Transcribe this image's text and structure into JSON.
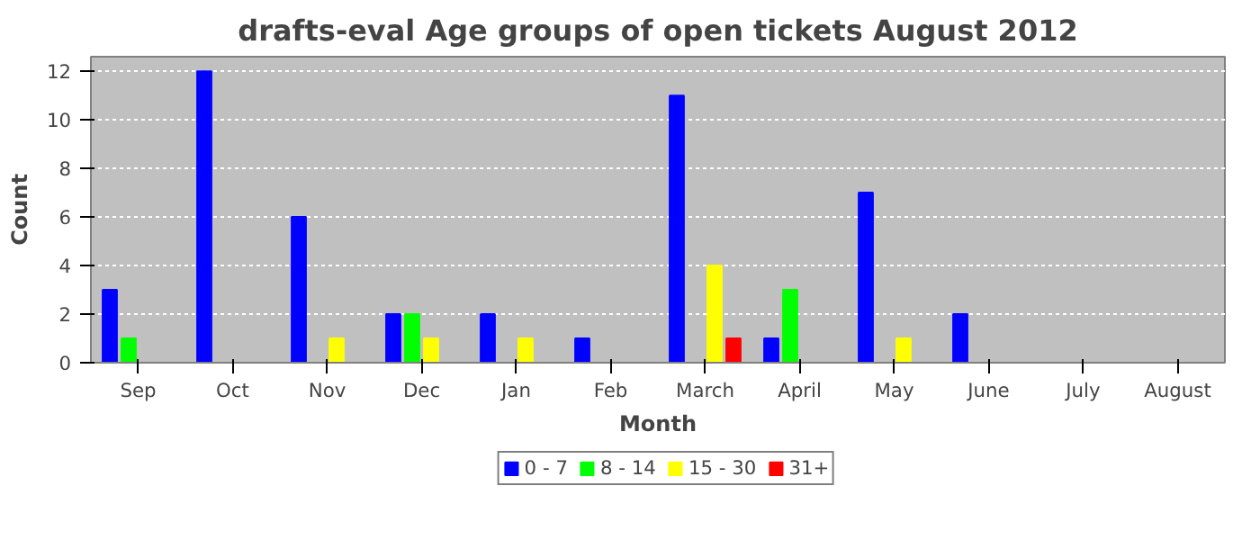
{
  "chart_data": {
    "type": "bar",
    "title": "drafts-eval Age groups of open tickets August 2012",
    "xlabel": "Month",
    "ylabel": "Count",
    "categories": [
      "Sep",
      "Oct",
      "Nov",
      "Dec",
      "Jan",
      "Feb",
      "March",
      "April",
      "May",
      "June",
      "July",
      "August"
    ],
    "series": [
      {
        "name": "0 - 7",
        "color": "#0000ff",
        "values": [
          3,
          12,
          6,
          2,
          2,
          1,
          11,
          1,
          7,
          2,
          0,
          0
        ]
      },
      {
        "name": "8 - 14",
        "color": "#00ff00",
        "values": [
          1,
          0,
          0,
          2,
          0,
          0,
          0,
          3,
          0,
          0,
          0,
          0
        ]
      },
      {
        "name": "15 - 30",
        "color": "#ffff00",
        "values": [
          0,
          0,
          1,
          1,
          1,
          0,
          4,
          0,
          1,
          0,
          0,
          0
        ]
      },
      {
        "name": "31+",
        "color": "#ff0000",
        "values": [
          0,
          0,
          0,
          0,
          0,
          0,
          1,
          0,
          0,
          0,
          0,
          0
        ]
      }
    ],
    "ylim": [
      0,
      12.6
    ],
    "yticks": [
      0,
      2,
      4,
      6,
      8,
      10,
      12
    ],
    "grid": "y",
    "legend": "bottom"
  }
}
